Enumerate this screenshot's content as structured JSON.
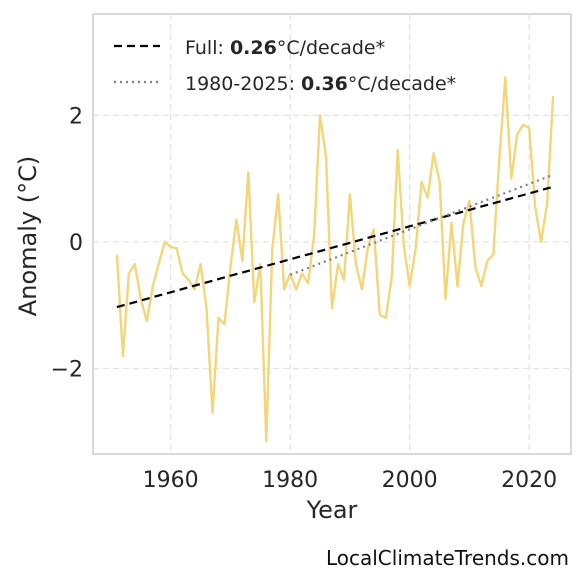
{
  "chart_data": {
    "type": "line",
    "xlabel": "Year",
    "ylabel": "Anomaly (°C)",
    "xlim": [
      1947,
      2027
    ],
    "ylim": [
      -3.35,
      3.6
    ],
    "xticks": [
      1960,
      1980,
      2000,
      2020
    ],
    "yticks": [
      -2,
      0,
      2
    ],
    "ytick_labels": [
      "−2",
      "0",
      "2"
    ],
    "grid": true,
    "legend_position": "top-left",
    "series": [
      {
        "kind": "observed",
        "color": "#f1d67a",
        "x": [
          1951,
          1952,
          1953,
          1954,
          1955,
          1956,
          1957,
          1958,
          1959,
          1960,
          1961,
          1962,
          1963,
          1964,
          1965,
          1966,
          1967,
          1968,
          1969,
          1970,
          1971,
          1972,
          1973,
          1974,
          1975,
          1976,
          1977,
          1978,
          1979,
          1980,
          1981,
          1982,
          1983,
          1984,
          1985,
          1986,
          1987,
          1988,
          1989,
          1990,
          1991,
          1992,
          1993,
          1994,
          1995,
          1996,
          1997,
          1998,
          1999,
          2000,
          2001,
          2002,
          2003,
          2004,
          2005,
          2006,
          2007,
          2008,
          2009,
          2010,
          2011,
          2012,
          2013,
          2014,
          2015,
          2016,
          2017,
          2018,
          2019,
          2020,
          2021,
          2022,
          2023,
          2024
        ],
        "y": [
          -0.2,
          -1.8,
          -0.5,
          -0.35,
          -0.9,
          -1.25,
          -0.7,
          -0.35,
          0.0,
          -0.08,
          -0.1,
          -0.5,
          -0.6,
          -0.75,
          -0.35,
          -1.05,
          -2.7,
          -1.2,
          -1.3,
          -0.4,
          0.35,
          -0.3,
          1.1,
          -0.95,
          -0.35,
          -3.15,
          -0.1,
          0.75,
          -0.75,
          -0.5,
          -0.75,
          -0.5,
          -0.65,
          0.1,
          2.0,
          1.35,
          -1.05,
          -0.35,
          -0.6,
          0.75,
          -0.35,
          -0.75,
          -0.1,
          0.2,
          -1.15,
          -1.2,
          -0.55,
          1.45,
          -0.05,
          -0.7,
          -0.1,
          0.95,
          0.7,
          1.4,
          0.95,
          -0.9,
          0.3,
          -0.7,
          0.3,
          0.65,
          -0.4,
          -0.7,
          -0.3,
          -0.2,
          1.3,
          2.6,
          1.0,
          1.7,
          1.85,
          1.8,
          0.55,
          0.0,
          0.6,
          2.3
        ]
      },
      {
        "kind": "trend-full",
        "color": "#000000",
        "dash": "dashed",
        "x": [
          1951,
          2024
        ],
        "y": [
          -1.03,
          0.87
        ]
      },
      {
        "kind": "trend-recent",
        "color": "#808080",
        "dash": "dotted",
        "x": [
          1980,
          2024
        ],
        "y": [
          -0.52,
          1.06
        ]
      }
    ],
    "legend": [
      {
        "prefix": "Full: ",
        "bold": "0.26",
        "suffix": "°C/decade*"
      },
      {
        "prefix": "1980-2025: ",
        "bold": "0.36",
        "suffix": "°C/decade*"
      }
    ]
  },
  "credit": "LocalClimateTrends.com"
}
